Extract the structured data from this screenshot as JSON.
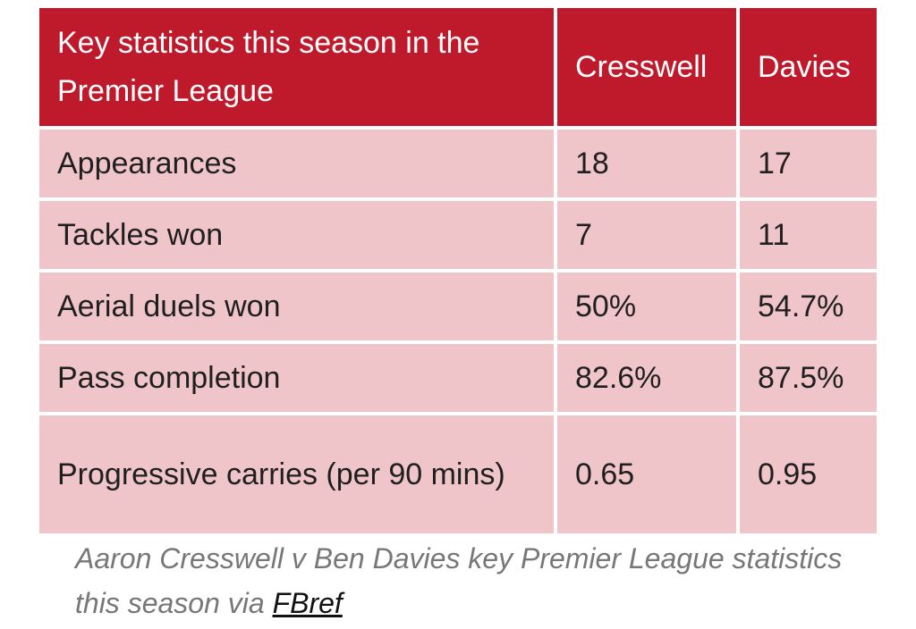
{
  "table": {
    "headers": [
      "Key statistics this season in the Premier League",
      "Cresswell",
      "Davies"
    ],
    "rows": [
      {
        "label": "Appearances",
        "cresswell": "18",
        "davies": "17"
      },
      {
        "label": "Tackles won",
        "cresswell": "7",
        "davies": "11"
      },
      {
        "label": "Aerial duels won",
        "cresswell": "50%",
        "davies": "54.7%"
      },
      {
        "label": "Pass completion",
        "cresswell": "82.6%",
        "davies": "87.5%"
      },
      {
        "label": "Progressive carries (per 90 mins)",
        "cresswell": "0.65",
        "davies": "0.95"
      }
    ]
  },
  "caption": {
    "text": "Aaron Cresswell v Ben Davies key Premier League statistics this season via",
    "link": "FBref"
  },
  "colors": {
    "header_bg": "#be1a2c",
    "cell_bg": "#f0c5c9",
    "caption_text": "#777777"
  }
}
